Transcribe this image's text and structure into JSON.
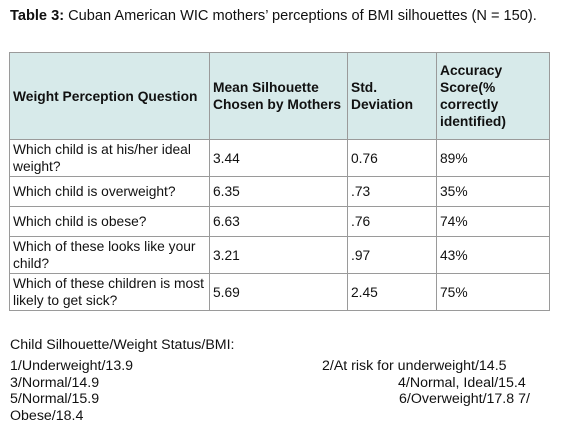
{
  "caption": {
    "label": "Table 3:",
    "text": " Cuban American WIC mothers’ perceptions of BMI silhouettes (N = 150)."
  },
  "table": {
    "headers": [
      "Weight Perception Question",
      "Mean Silhouette Chosen by Mothers",
      "Std. Deviation",
      "Accuracy Score(% correctly identified)"
    ],
    "rows": [
      {
        "question": "Which child is at his/her ideal weight?",
        "mean": "3.44",
        "sd": "0.76",
        "accuracy": "89%"
      },
      {
        "question": "Which child is overweight?",
        "mean": "6.35",
        "sd": ".73",
        "accuracy": "35%"
      },
      {
        "question": "Which child is obese?",
        "mean": "6.63",
        "sd": ".76",
        "accuracy": "74%"
      },
      {
        "question": "Which of these looks like your child?",
        "mean": "3.21",
        "sd": ".97",
        "accuracy": "43%"
      },
      {
        "question": "Which of these children is most likely to get sick?",
        "mean": "5.69",
        "sd": "2.45",
        "accuracy": "75%"
      }
    ]
  },
  "footnote": {
    "heading": "Child Silhouette/Weight Status/BMI:",
    "items": [
      "1/Underweight/13.9",
      "2/At risk for underweight/14.5",
      "3/Normal/14.9",
      "4/Normal, Ideal/15.4",
      "5/Normal/15.9",
      "6/Overweight/17.8 7/",
      "Obese/18.4"
    ]
  }
}
